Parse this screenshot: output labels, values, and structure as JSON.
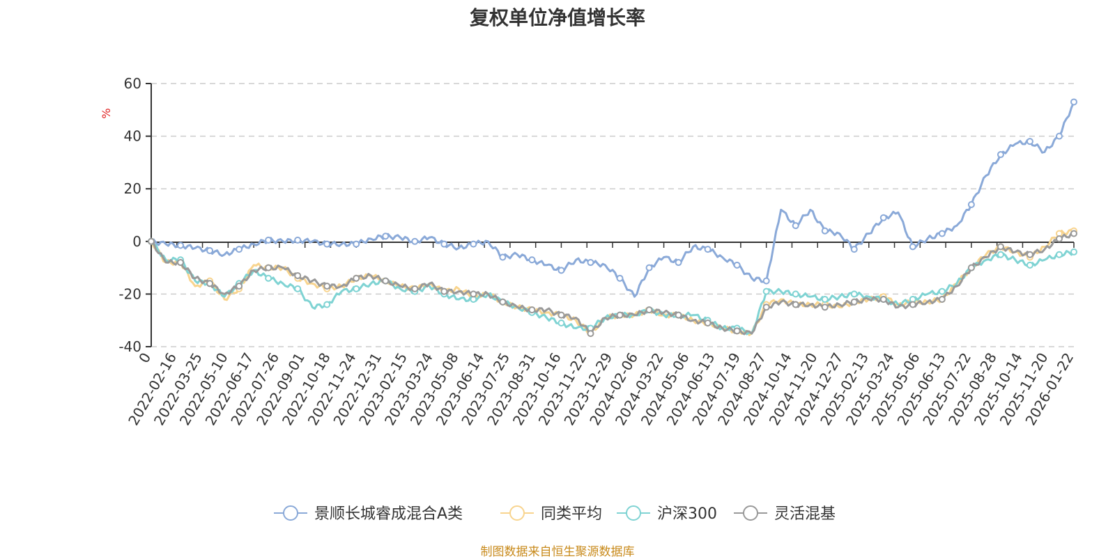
{
  "chart_data": {
    "type": "line",
    "title": "复权单位净值增长率",
    "ylabel": "%",
    "ylim": [
      -40,
      60
    ],
    "yticks": [
      "60",
      "40",
      "20",
      "0",
      "-20",
      "-40"
    ],
    "grid": true,
    "legend_position": "bottom",
    "x_start_label": "0",
    "x_tick_labels": [
      "2022-02-16",
      "2022-03-25",
      "2022-05-10",
      "2022-06-17",
      "2022-07-26",
      "2022-09-01",
      "2022-10-18",
      "2022-11-24",
      "2022-12-31",
      "2023-02-15",
      "2023-03-24",
      "2023-05-08",
      "2023-06-14",
      "2023-07-25",
      "2023-08-31",
      "2023-10-16",
      "2023-11-22",
      "2023-12-29",
      "2024-02-06",
      "2024-03-22",
      "2024-05-06",
      "2024-06-13",
      "2024-07-19",
      "2024-08-27",
      "2024-10-14",
      "2024-11-20",
      "2024-12-27",
      "2025-02-13",
      "2025-03-24",
      "2025-05-06",
      "2025-06-13",
      "2025-07-22",
      "2025-08-28",
      "2025-10-14",
      "2025-11-20",
      "2026-01-22"
    ],
    "series": [
      {
        "name": "景顺长城睿成混合A类",
        "color": "#8aa9d8",
        "values": [
          0,
          -1,
          -1.5,
          -2.5,
          -3.5,
          -5,
          -3,
          -1,
          0.5,
          0,
          0.5,
          0,
          -1,
          -1,
          -1,
          1,
          2,
          1.5,
          0,
          1.5,
          -1,
          -2.5,
          -1,
          0,
          -6,
          -5,
          -7,
          -9,
          -11,
          -7,
          -8,
          -9,
          -14,
          -21,
          -10,
          -6,
          -8,
          -2,
          -3,
          -6,
          -9,
          -14,
          -15,
          12,
          6,
          12,
          4,
          3,
          -3,
          3,
          9,
          11,
          -2,
          1,
          3,
          6,
          14,
          25,
          33,
          37,
          38,
          34,
          40,
          53
        ]
      },
      {
        "name": "同类平均",
        "color": "#f8d48e",
        "values": [
          0,
          -8,
          -8,
          -17,
          -15,
          -22,
          -18,
          -9,
          -10,
          -10,
          -14,
          -16,
          -18,
          -17,
          -14,
          -13,
          -15,
          -17,
          -18,
          -16,
          -19,
          -18,
          -21,
          -20,
          -23,
          -25,
          -26,
          -27,
          -28,
          -30,
          -35,
          -29,
          -28,
          -28,
          -26,
          -28,
          -28,
          -30,
          -31,
          -33,
          -34,
          -35,
          -24,
          -22,
          -24,
          -24,
          -24,
          -25,
          -23,
          -22,
          -21,
          -24,
          -23,
          -23,
          -22,
          -16,
          -10,
          -5,
          -2,
          -4,
          -6,
          -2,
          3,
          4
        ]
      },
      {
        "name": "沪深300",
        "color": "#7fd3d3",
        "values": [
          0,
          -7,
          -7,
          -15,
          -16,
          -21,
          -16,
          -11,
          -14,
          -16,
          -18,
          -25,
          -24,
          -19,
          -18,
          -16,
          -15,
          -18,
          -19,
          -17,
          -20,
          -22,
          -22,
          -20,
          -23,
          -25,
          -27,
          -29,
          -31,
          -33,
          -33,
          -29,
          -28,
          -28,
          -26,
          -28,
          -28,
          -28,
          -30,
          -33,
          -33,
          -35,
          -19,
          -19,
          -20,
          -21,
          -22,
          -21,
          -20,
          -21,
          -22,
          -24,
          -22,
          -20,
          -19,
          -16,
          -10,
          -7,
          -5,
          -7,
          -9,
          -7,
          -5,
          -4
        ]
      },
      {
        "name": "灵活混基",
        "color": "#999999",
        "values": [
          0,
          -8,
          -8,
          -14,
          -16,
          -20,
          -17,
          -11,
          -10,
          -10,
          -13,
          -15,
          -17,
          -17,
          -14,
          -13,
          -15,
          -17,
          -18,
          -16,
          -19,
          -19,
          -20,
          -20,
          -23,
          -25,
          -26,
          -26,
          -28,
          -29,
          -35,
          -29,
          -28,
          -28,
          -26,
          -27,
          -28,
          -30,
          -31,
          -33,
          -34,
          -35,
          -25,
          -23,
          -24,
          -24,
          -25,
          -24,
          -23,
          -22,
          -22,
          -25,
          -24,
          -23,
          -22,
          -17,
          -10,
          -6,
          -2,
          -4,
          -5,
          -3,
          1,
          3
        ]
      }
    ]
  },
  "source_note": "制图数据来自恒生聚源数据库"
}
